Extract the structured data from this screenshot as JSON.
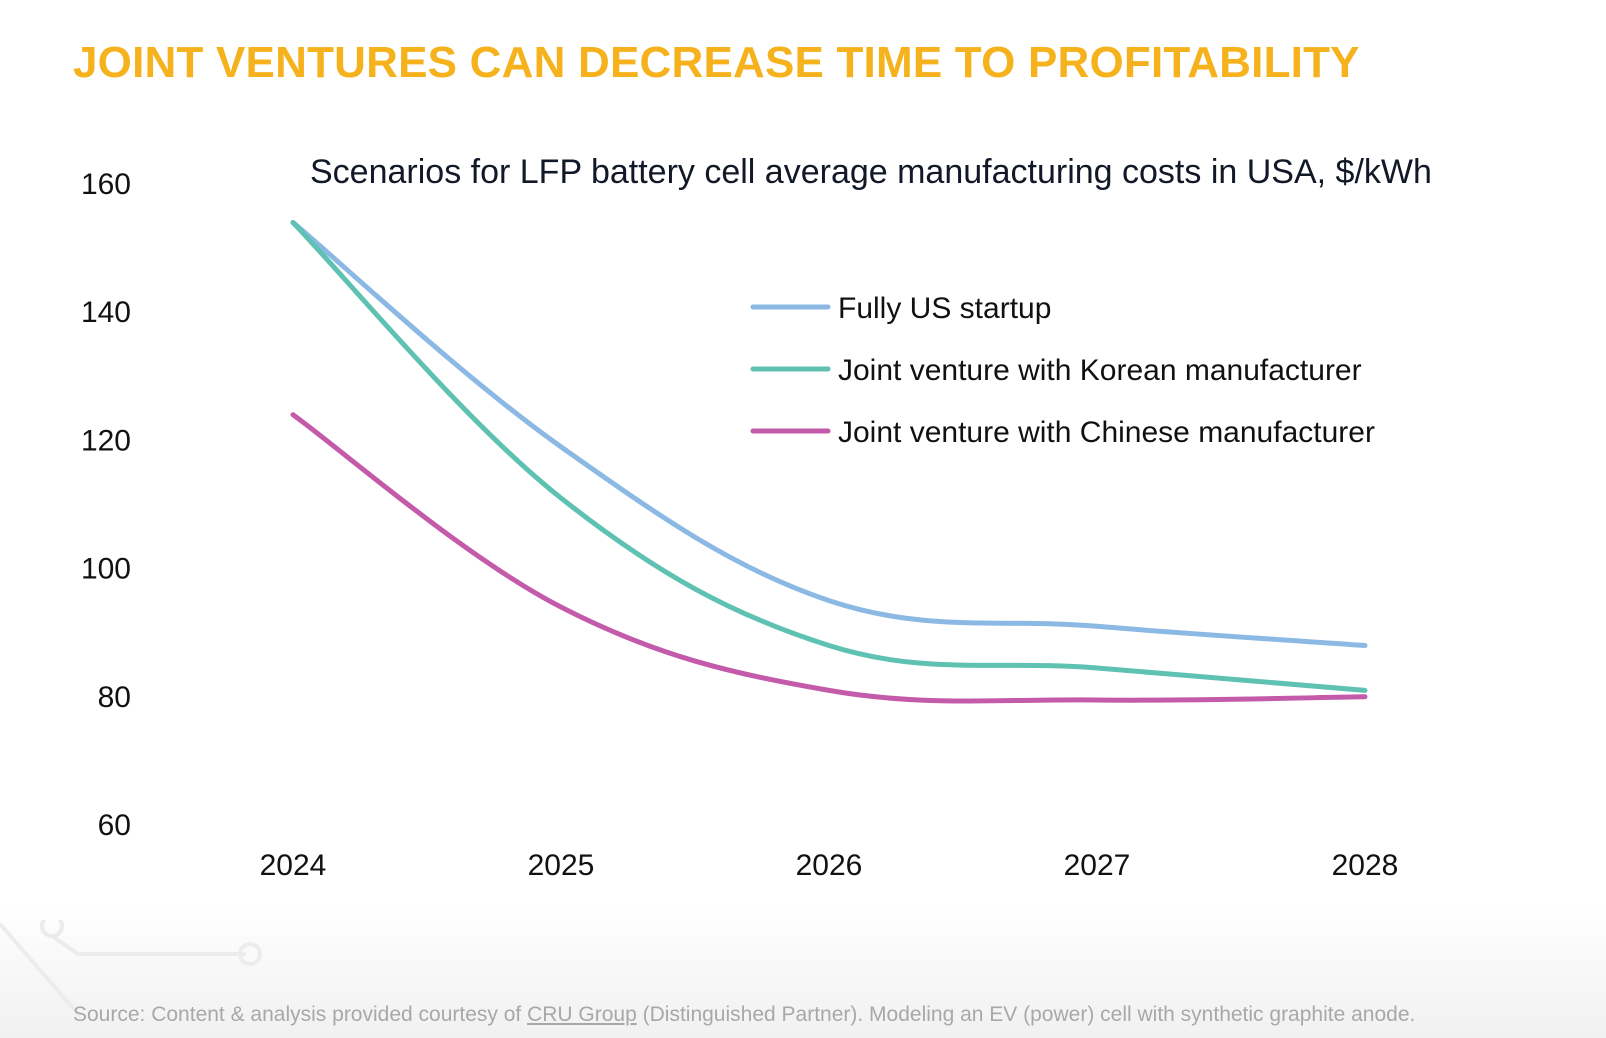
{
  "slide": {
    "title": "JOINT VENTURES CAN DECREASE TIME TO PROFITABILITY"
  },
  "source": {
    "prefix": "Source: Content & analysis provided courtesy of ",
    "link_text": "CRU Group",
    "suffix": " (Distinguished Partner). Modeling an EV (power) cell with synthetic graphite anode."
  },
  "chart_data": {
    "type": "line",
    "title": "Scenarios for LFP battery cell average manufacturing costs in USA, $/kWh",
    "xlabel": "",
    "ylabel": "",
    "x": [
      "2024",
      "2025",
      "2026",
      "2027",
      "2028"
    ],
    "ylim": [
      60,
      160
    ],
    "yticks": [
      "160",
      "140",
      "120",
      "100",
      "80",
      "60"
    ],
    "grid": false,
    "legend_position": "top-right",
    "series": [
      {
        "name": "Fully US startup",
        "color": "#8BB9E4",
        "values": [
          154,
          119,
          95,
          91,
          88
        ]
      },
      {
        "name": "Joint venture with Korean manufacturer",
        "color": "#5EC1B1",
        "values": [
          154,
          111,
          88,
          84.5,
          81
        ]
      },
      {
        "name": "Joint venture with Chinese manufacturer",
        "color": "#C45BAA",
        "values": [
          124,
          94,
          81,
          79.5,
          80
        ]
      }
    ]
  }
}
